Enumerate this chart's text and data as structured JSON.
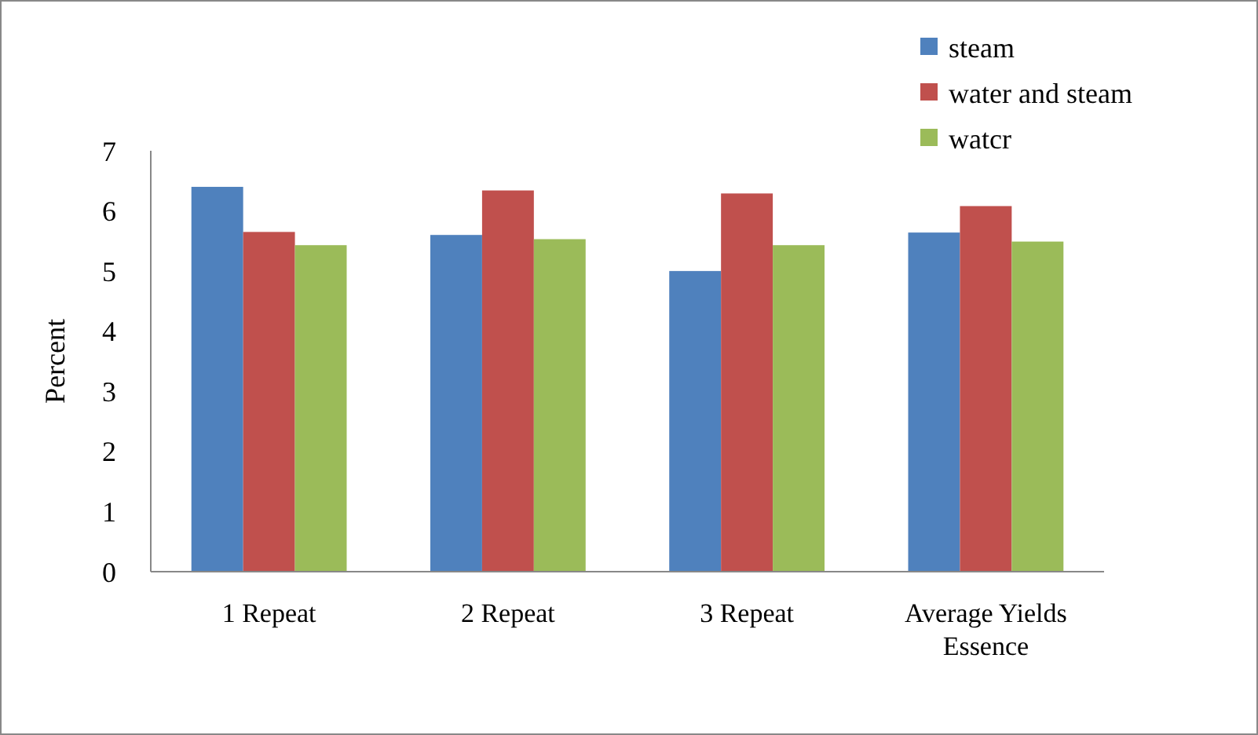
{
  "chart_data": {
    "type": "bar",
    "ylabel": "Percent",
    "categories": [
      "1 Repeat",
      "2 Repeat",
      "3 Repeat",
      "Average Yields Essence"
    ],
    "series": [
      {
        "name": "steam",
        "color": "#4f81bd",
        "values": [
          6.4,
          5.6,
          5.0,
          5.64
        ]
      },
      {
        "name": "water and steam",
        "color": "#c0504d",
        "values": [
          5.65,
          6.34,
          6.29,
          6.08
        ]
      },
      {
        "name": "watcr",
        "color": "#9bbb59",
        "values": [
          5.43,
          5.53,
          5.43,
          5.49
        ]
      }
    ],
    "ylim": [
      0,
      7
    ],
    "yticks": [
      0,
      1,
      2,
      3,
      4,
      5,
      6,
      7
    ],
    "grid": false,
    "legend": "top right"
  }
}
